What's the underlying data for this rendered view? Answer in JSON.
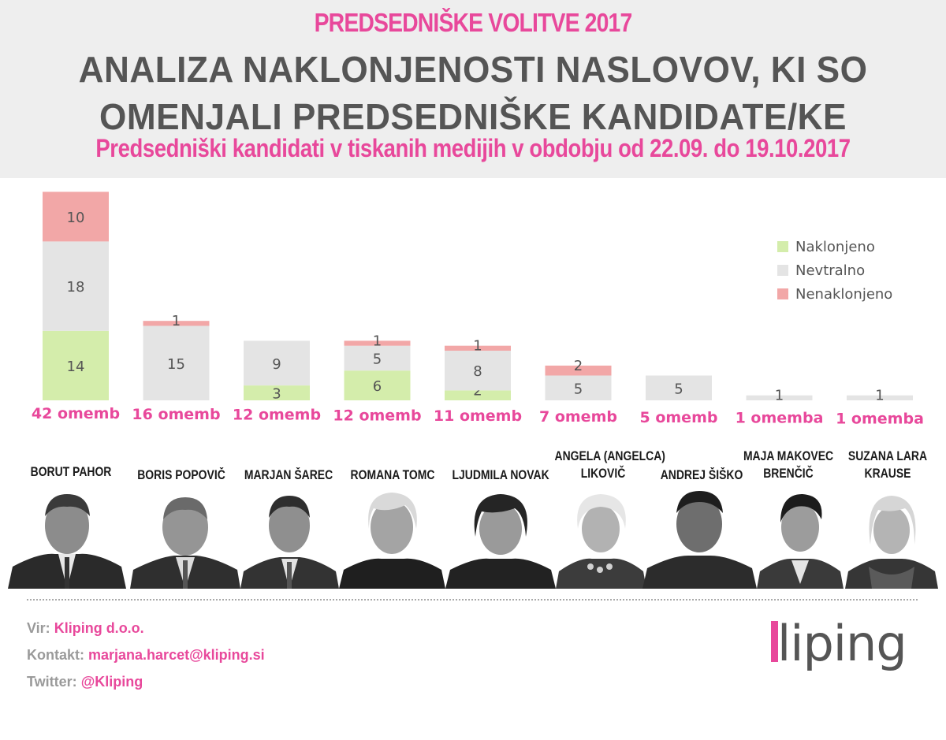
{
  "header": {
    "supertitle": "PREDSEDNIŠKE VOLITVE 2017",
    "title_line1": "ANALIZA NAKLONJENOSTI NASLOVOV, KI SO",
    "title_line2": "OMENJALI PREDSEDNIŠKE KANDIDATE/KE",
    "subtitle": "Predsedniški kandidati v tiskanih medijih v obdobju od 22.09. do 19.10.2017"
  },
  "colors": {
    "accent": "#e8489b",
    "positive": "#d4edab",
    "neutral": "#e4e4e4",
    "negative": "#f2a7a7",
    "header_bg": "#eeeeee",
    "title_gray": "#555555"
  },
  "chart_data": {
    "type": "bar",
    "stacked": true,
    "title": "",
    "xlabel": "",
    "ylabel": "",
    "ylim": [
      0,
      42
    ],
    "grid": false,
    "legend_position": "right",
    "categories": [
      "BORUT PAHOR",
      "BORIS POPOVIČ",
      "MARJAN ŠAREC",
      "ROMANA TOMC",
      "LJUDMILA NOVAK",
      "ANGELA (ANGELCA) LIKOVIČ",
      "ANDREJ ŠIŠKO",
      "MAJA MAKOVEC BRENČIČ",
      "SUZANA LARA KRAUSE"
    ],
    "totals_labels": [
      "42 omemb",
      "16 omemb",
      "12 omemb",
      "12 omemb",
      "11 omemb",
      "7 omemb",
      "5 omemb",
      "1 omemba",
      "1 omemba"
    ],
    "series": [
      {
        "name": "Naklonjeno",
        "color": "#d4edab",
        "values": [
          14,
          0,
          3,
          6,
          2,
          0,
          0,
          0,
          0
        ]
      },
      {
        "name": "Nevtralno",
        "color": "#e4e4e4",
        "values": [
          18,
          15,
          9,
          5,
          8,
          5,
          5,
          1,
          1
        ]
      },
      {
        "name": "Nenaklonjeno",
        "color": "#f2a7a7",
        "values": [
          10,
          1,
          0,
          1,
          1,
          2,
          0,
          0,
          0
        ]
      }
    ]
  },
  "candidates": [
    {
      "line1": "BORUT PAHOR",
      "line2": ""
    },
    {
      "line1": "BORIS POPOVIČ",
      "line2": ""
    },
    {
      "line1": "MARJAN ŠAREC",
      "line2": ""
    },
    {
      "line1": "ROMANA TOMC",
      "line2": ""
    },
    {
      "line1": "LJUDMILA NOVAK",
      "line2": ""
    },
    {
      "line1": "ANGELA (ANGELCA)",
      "line2": "LIKOVIČ"
    },
    {
      "line1": "ANDREJ ŠIŠKO",
      "line2": ""
    },
    {
      "line1": "MAJA MAKOVEC",
      "line2": "BRENČIČ"
    },
    {
      "line1": "SUZANA LARA",
      "line2": "KRAUSE"
    }
  ],
  "footer": {
    "source_label": "Vir:",
    "source_value": "Kliping d.o.o.",
    "contact_label": "Kontakt:",
    "contact_value": "marjana.harcet@kliping.si",
    "twitter_label": "Twitter:",
    "twitter_value": "@Kliping"
  },
  "logo": {
    "text": "kliping"
  }
}
